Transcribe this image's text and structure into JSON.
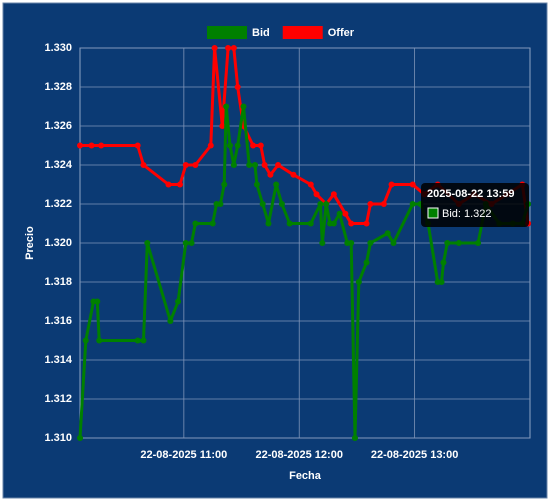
{
  "chart_data": {
    "type": "line",
    "x_label": "Fecha",
    "y_label": "Precio",
    "xlim": [
      "2025-08-22 10:06",
      "2025-08-22 14:00"
    ],
    "xticks": [
      {
        "value": "2025-08-22 11:00",
        "label": "22-08-2025 11:00"
      },
      {
        "value": "2025-08-22 12:00",
        "label": "22-08-2025 12:00"
      },
      {
        "value": "2025-08-22 13:00",
        "label": "22-08-2025 13:00"
      }
    ],
    "ylim": [
      1.31,
      1.33
    ],
    "yticks": [
      {
        "value": 1.31,
        "label": "1.310"
      },
      {
        "value": 1.312,
        "label": "1.312"
      },
      {
        "value": 1.314,
        "label": "1.314"
      },
      {
        "value": 1.316,
        "label": "1.316"
      },
      {
        "value": 1.318,
        "label": "1.318"
      },
      {
        "value": 1.32,
        "label": "1.320"
      },
      {
        "value": 1.322,
        "label": "1.322"
      },
      {
        "value": 1.324,
        "label": "1.324"
      },
      {
        "value": 1.326,
        "label": "1.326"
      },
      {
        "value": 1.328,
        "label": "1.328"
      },
      {
        "value": 1.33,
        "label": "1.330"
      }
    ],
    "grid": true,
    "legend": "top",
    "series": [
      {
        "name": "Bid",
        "color": "#008000",
        "x": [
          "2025-08-22 10:06",
          "2025-08-22 10:09",
          "2025-08-22 10:13",
          "2025-08-22 10:15",
          "2025-08-22 10:16",
          "2025-08-22 10:36",
          "2025-08-22 10:39",
          "2025-08-22 10:41",
          "2025-08-22 10:53",
          "2025-08-22 10:57",
          "2025-08-22 11:01",
          "2025-08-22 11:04",
          "2025-08-22 11:06",
          "2025-08-22 11:15",
          "2025-08-22 11:17",
          "2025-08-22 11:19",
          "2025-08-22 11:21",
          "2025-08-22 11:22",
          "2025-08-22 11:24",
          "2025-08-22 11:26",
          "2025-08-22 11:28",
          "2025-08-22 11:31",
          "2025-08-22 11:34",
          "2025-08-22 11:37",
          "2025-08-22 11:38",
          "2025-08-22 11:41",
          "2025-08-22 11:44",
          "2025-08-22 11:48",
          "2025-08-22 11:51",
          "2025-08-22 11:55",
          "2025-08-22 12:06",
          "2025-08-22 12:11",
          "2025-08-22 12:12",
          "2025-08-22 12:14",
          "2025-08-22 12:16",
          "2025-08-22 12:18",
          "2025-08-22 12:21",
          "2025-08-22 12:25",
          "2025-08-22 12:27",
          "2025-08-22 12:29",
          "2025-08-22 12:31",
          "2025-08-22 12:35",
          "2025-08-22 12:37",
          "2025-08-22 12:46",
          "2025-08-22 12:49",
          "2025-08-22 12:59",
          "2025-08-22 13:03",
          "2025-08-22 13:07",
          "2025-08-22 13:12",
          "2025-08-22 13:14",
          "2025-08-22 13:15",
          "2025-08-22 13:17",
          "2025-08-22 13:23",
          "2025-08-22 13:33",
          "2025-08-22 13:37",
          "2025-08-22 13:44",
          "2025-08-22 13:51",
          "2025-08-22 13:56",
          "2025-08-22 13:59"
        ],
        "values": [
          1.31,
          1.315,
          1.317,
          1.317,
          1.315,
          1.315,
          1.315,
          1.32,
          1.316,
          1.317,
          1.32,
          1.32,
          1.321,
          1.321,
          1.322,
          1.322,
          1.323,
          1.327,
          1.325,
          1.324,
          1.325,
          1.327,
          1.324,
          1.324,
          1.323,
          1.322,
          1.321,
          1.323,
          1.322,
          1.321,
          1.321,
          1.322,
          1.32,
          1.322,
          1.321,
          1.321,
          1.3215,
          1.32,
          1.32,
          1.31,
          1.318,
          1.319,
          1.32,
          1.3205,
          1.32,
          1.322,
          1.322,
          1.321,
          1.318,
          1.318,
          1.319,
          1.32,
          1.32,
          1.32,
          1.322,
          1.321,
          1.321,
          1.321,
          1.322
        ]
      },
      {
        "name": "Offer",
        "color": "#ff0000",
        "x": [
          "2025-08-22 10:06",
          "2025-08-22 10:12",
          "2025-08-22 10:17",
          "2025-08-22 10:36",
          "2025-08-22 10:39",
          "2025-08-22 10:52",
          "2025-08-22 10:58",
          "2025-08-22 11:01",
          "2025-08-22 11:06",
          "2025-08-22 11:14",
          "2025-08-22 11:16",
          "2025-08-22 11:20",
          "2025-08-22 11:23",
          "2025-08-22 11:26",
          "2025-08-22 11:28",
          "2025-08-22 11:31",
          "2025-08-22 11:36",
          "2025-08-22 11:40",
          "2025-08-22 11:42",
          "2025-08-22 11:45",
          "2025-08-22 11:49",
          "2025-08-22 11:57",
          "2025-08-22 12:06",
          "2025-08-22 12:09",
          "2025-08-22 12:14",
          "2025-08-22 12:18",
          "2025-08-22 12:24",
          "2025-08-22 12:27",
          "2025-08-22 12:35",
          "2025-08-22 12:37",
          "2025-08-22 12:44",
          "2025-08-22 12:48",
          "2025-08-22 12:59",
          "2025-08-22 13:05",
          "2025-08-22 13:12",
          "2025-08-22 13:23",
          "2025-08-22 13:31",
          "2025-08-22 13:40",
          "2025-08-22 13:48",
          "2025-08-22 13:56",
          "2025-08-22 13:59"
        ],
        "values": [
          1.325,
          1.325,
          1.325,
          1.325,
          1.324,
          1.323,
          1.323,
          1.324,
          1.324,
          1.325,
          1.33,
          1.326,
          1.33,
          1.33,
          1.328,
          1.326,
          1.325,
          1.325,
          1.324,
          1.3235,
          1.324,
          1.3235,
          1.323,
          1.3225,
          1.322,
          1.3225,
          1.3215,
          1.321,
          1.321,
          1.322,
          1.322,
          1.323,
          1.323,
          1.3225,
          1.323,
          1.322,
          1.3225,
          1.322,
          1.3225,
          1.323,
          1.321
        ]
      }
    ],
    "tooltip": {
      "title": "2025-08-22 13:59",
      "label": "Bid: 1.322"
    }
  }
}
